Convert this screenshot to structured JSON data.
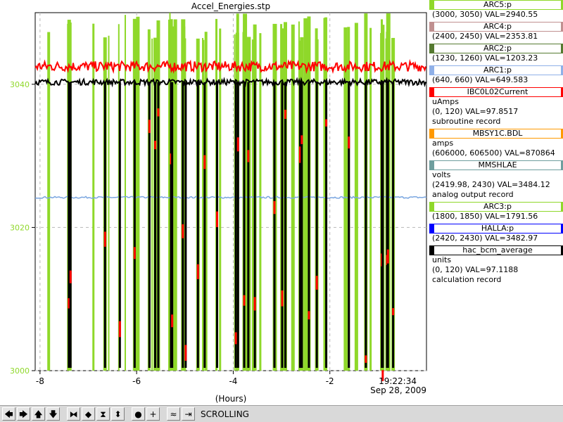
{
  "chart_data": {
    "type": "line",
    "title": "Accel_Energies.stp",
    "xlabel": "(Hours)",
    "x_ticks": [
      "-8",
      "-6",
      "-4",
      "-2"
    ],
    "x_tick_values": [
      -8,
      -6,
      -4,
      -2
    ],
    "xlim": [
      -8.1,
      0
    ],
    "y_ticks": [
      "3000",
      "3020",
      "3040"
    ],
    "y_tick_values": [
      3000,
      3020,
      3040
    ],
    "ylim": [
      3000,
      3050
    ],
    "grid": true,
    "end_time": "19:22:34",
    "end_date": "Sep 28, 2009",
    "series": [
      {
        "name": "ARC5:p",
        "color": "#8fd82a",
        "shape": "spikes"
      },
      {
        "name": "IBC0L02Current",
        "color": "#ff0000",
        "shape": "noisy",
        "level": 3042.5,
        "amp": 0.7
      },
      {
        "name": "hac_bcm_average",
        "color": "#000000",
        "shape": "noisy",
        "level": 3040.3,
        "amp": 0.4
      },
      {
        "name": "HALLA:p",
        "color": "#7aa6e0",
        "shape": "flat",
        "level": 3024.2
      }
    ]
  },
  "legend": {
    "items": [
      {
        "name": "ARC5:p",
        "color": "#8fd82a",
        "lines": [
          "(3000, 3050) VAL=2940.55"
        ]
      },
      {
        "name": "ARC4:p",
        "color": "#c09090",
        "lines": [
          "(2400, 2450) VAL=2353.81"
        ]
      },
      {
        "name": "ARC2:p",
        "color": "#557a30",
        "lines": [
          "(1230, 1260) VAL=1203.23"
        ]
      },
      {
        "name": "ARC1:p",
        "color": "#8fb0e8",
        "lines": [
          "(640, 660) VAL=649.583"
        ]
      },
      {
        "name": "IBC0L02Current",
        "color": "#ff0000",
        "lines": [
          "uAmps",
          "(0, 120) VAL=97.8517",
          "subroutine record"
        ]
      },
      {
        "name": "MBSY1C.BDL",
        "color": "#ff9900",
        "lines": [
          "amps",
          "(606000, 606500) VAL=870864"
        ]
      },
      {
        "name": "MMSHLAE",
        "color": "#6e9e9e",
        "lines": [
          "volts",
          "(2419.98, 2430) VAL=3484.12",
          "analog output record"
        ]
      },
      {
        "name": "ARC3:p",
        "color": "#8fd82a",
        "lines": [
          "(1800, 1850) VAL=1791.56"
        ]
      },
      {
        "name": "HALLA:p",
        "color": "#0000ff",
        "lines": [
          "(2420, 2430) VAL=3482.97"
        ]
      },
      {
        "name": "hac_bcm_average",
        "color": "#000000",
        "lines": [
          "units",
          "(0, 120) VAL=97.1188",
          "calculation record"
        ]
      }
    ]
  },
  "toolbar": {
    "buttons": [
      {
        "icon": "left-arrow-icon",
        "glyph": "🡄"
      },
      {
        "icon": "right-arrow-icon",
        "glyph": "🡆"
      },
      {
        "icon": "up-arrow-icon",
        "glyph": "🡅"
      },
      {
        "icon": "down-arrow-icon",
        "glyph": "🡇"
      },
      {
        "icon": "expand-horizontal-icon",
        "glyph": "⧓"
      },
      {
        "icon": "shrink-horizontal-icon",
        "glyph": "◆"
      },
      {
        "icon": "expand-vertical-icon",
        "glyph": "⧗"
      },
      {
        "icon": "shrink-vertical-icon",
        "glyph": "⬍"
      },
      {
        "icon": "config-icon",
        "glyph": "●"
      },
      {
        "icon": "add-icon",
        "glyph": "+"
      },
      {
        "icon": "autoscale-icon",
        "glyph": "≈"
      },
      {
        "icon": "scroll-to-end-icon",
        "glyph": "⇥"
      }
    ],
    "status": "SCROLLING"
  }
}
